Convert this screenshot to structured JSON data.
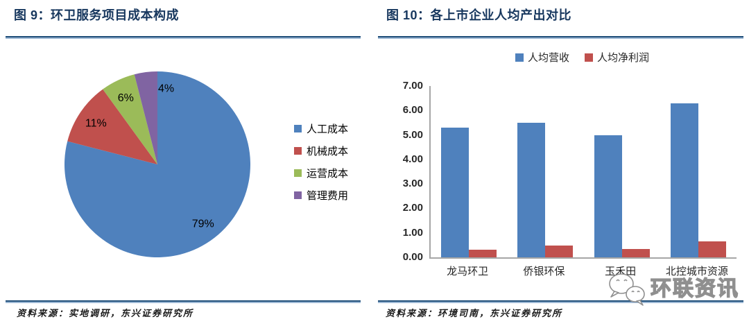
{
  "left_panel": {
    "title": "图 9：环卫服务项目成本构成",
    "source": "资料来源：实地调研，东兴证券研究所"
  },
  "right_panel": {
    "title": "图 10：各上市企业人均产出对比",
    "source": "资料来源：环境司南，东兴证券研究所"
  },
  "watermark": {
    "icon": "wechat-chat-bubbles-icon",
    "text": "环联资讯"
  },
  "colors": {
    "title_navy": "#17375E",
    "rule_dark": "#1F4E79",
    "rule_light": "#9CB7D4",
    "axis_gray": "#A6A6A6",
    "watermark_gray": "#8f8f8f",
    "series_blue": "#4F81BD",
    "series_red": "#C0504D",
    "series_green": "#9BBB59",
    "series_purple": "#8064A2"
  },
  "chart_data": [
    {
      "type": "pie",
      "title": "环卫服务项目成本构成",
      "labels": [
        "人工成本",
        "机械成本",
        "运营成本",
        "管理费用"
      ],
      "values": [
        79,
        11,
        6,
        4
      ],
      "value_labels": [
        "79%",
        "11%",
        "6%",
        "4%"
      ],
      "colors": [
        "#4F81BD",
        "#C0504D",
        "#9BBB59",
        "#8064A2"
      ],
      "start_angle_deg": 0,
      "direction": "clockwise",
      "legend_position": "right"
    },
    {
      "type": "bar",
      "title": "各上市企业人均产出对比",
      "categories": [
        "龙马环卫",
        "侨银环保",
        "玉禾田",
        "北控城市资源"
      ],
      "series": [
        {
          "name": "人均营收",
          "color": "#4F81BD",
          "values": [
            5.3,
            5.5,
            5.0,
            6.3
          ]
        },
        {
          "name": "人均净利润",
          "color": "#C0504D",
          "values": [
            0.3,
            0.47,
            0.33,
            0.65
          ]
        }
      ],
      "ylim": [
        0,
        7
      ],
      "ytick_step": 1,
      "ytick_labels": [
        "0.00",
        "1.00",
        "2.00",
        "3.00",
        "4.00",
        "5.00",
        "6.00",
        "7.00"
      ],
      "grid": false,
      "legend_position": "top"
    }
  ]
}
